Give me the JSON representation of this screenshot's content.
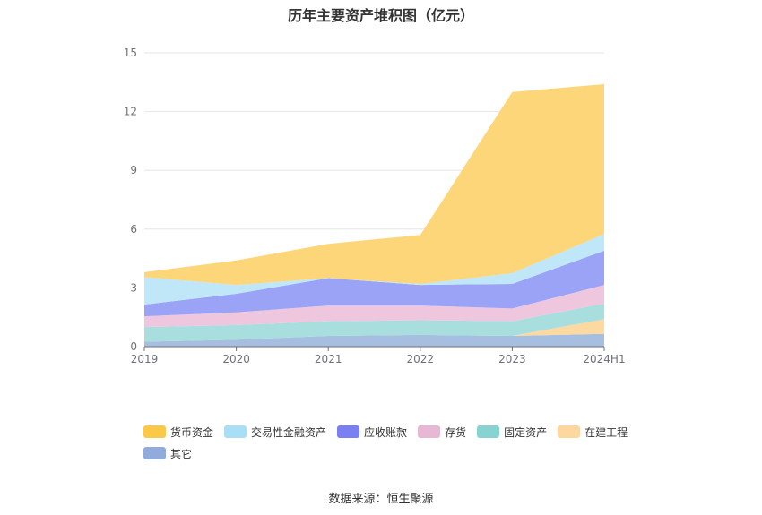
{
  "chart_data": {
    "type": "area",
    "stacked": true,
    "title": "历年主要资产堆积图（亿元）",
    "categories": [
      "2019",
      "2020",
      "2021",
      "2022",
      "2023",
      "2024H1"
    ],
    "ylim": [
      0,
      15
    ],
    "yticks": [
      "0",
      "3",
      "6",
      "9",
      "12",
      "15"
    ],
    "grid": true,
    "legend_position": "bottom",
    "series": [
      {
        "name": "其它",
        "color": "#a6bfe0",
        "legend_color": "#91acdc",
        "values": [
          0.25,
          0.35,
          0.55,
          0.6,
          0.55,
          0.65
        ]
      },
      {
        "name": "在建工程",
        "color": "#fcd9a1",
        "legend_color": "#fdd79e",
        "values": [
          0.0,
          0.0,
          0.0,
          0.0,
          0.0,
          0.75
        ]
      },
      {
        "name": "固定资产",
        "color": "#a8dfde",
        "legend_color": "#86d3d2",
        "values": [
          0.75,
          0.75,
          0.75,
          0.75,
          0.75,
          0.8
        ]
      },
      {
        "name": "存货",
        "color": "#eec7de",
        "legend_color": "#e6b8d6",
        "values": [
          0.55,
          0.65,
          0.8,
          0.75,
          0.65,
          0.95
        ]
      },
      {
        "name": "应收账款",
        "color": "#9aa3f6",
        "legend_color": "#7a7ff2",
        "values": [
          0.6,
          0.95,
          1.4,
          1.05,
          1.25,
          1.75
        ]
      },
      {
        "name": "交易性金融资产",
        "color": "#bfe7f8",
        "legend_color": "#a8def6",
        "values": [
          1.4,
          0.45,
          0.0,
          0.05,
          0.55,
          0.85
        ]
      },
      {
        "name": "货币资金",
        "color": "#fdd67a",
        "legend_color": "#fbc84a",
        "values": [
          0.25,
          1.25,
          1.75,
          2.5,
          9.25,
          7.65
        ]
      }
    ]
  },
  "legend_order": [
    2,
    5,
    4,
    3,
    2,
    1,
    0
  ],
  "source_text": "数据来源：恒生聚源"
}
